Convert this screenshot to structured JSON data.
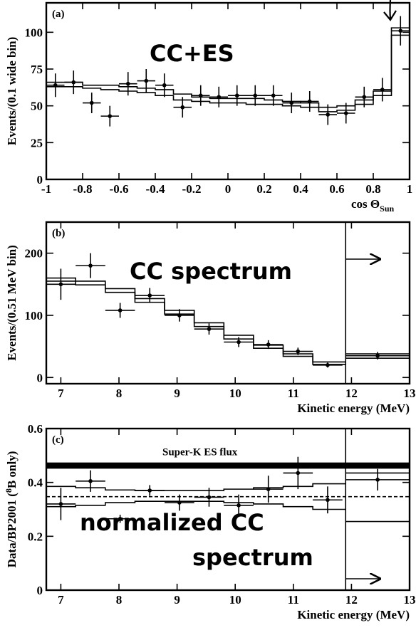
{
  "chart_data": [
    {
      "id": "a",
      "type": "line",
      "panel_label": "(a)",
      "annotation": "CC+ES",
      "xlabel": "cos Θ",
      "xlabel_sub": "Sun",
      "ylabel": "Events/(0.1 wide bin)",
      "xlim": [
        -1,
        1
      ],
      "ylim": [
        0,
        120
      ],
      "xticks": [
        -1,
        -0.8,
        -0.6,
        -0.4,
        -0.2,
        0,
        0.2,
        0.4,
        0.6,
        0.8,
        1
      ],
      "xtick_labels": [
        "-1",
        "-0.8",
        "-0.6",
        "-0.4",
        "-0.2",
        "0",
        "0.2",
        "0.4",
        "0.6",
        "0.8",
        "1"
      ],
      "yticks": [
        0,
        25,
        50,
        75,
        100
      ],
      "ytick_labels": [
        "0",
        "25",
        "50",
        "75",
        "100"
      ],
      "data_points": {
        "x": [
          -0.95,
          -0.85,
          -0.75,
          -0.65,
          -0.55,
          -0.45,
          -0.35,
          -0.25,
          -0.15,
          -0.05,
          0.05,
          0.15,
          0.25,
          0.35,
          0.45,
          0.55,
          0.65,
          0.75,
          0.85,
          0.95
        ],
        "y": [
          64,
          66,
          52,
          43,
          65,
          67,
          64,
          49,
          57,
          56,
          57,
          57,
          57,
          52,
          53,
          44,
          45,
          56,
          61,
          101
        ],
        "yerr": [
          8,
          8,
          7,
          7,
          8,
          8,
          8,
          7,
          7,
          7,
          7,
          7,
          7,
          7,
          7,
          7,
          7,
          7,
          8,
          10
        ]
      },
      "step_upper": {
        "edges": [
          -1,
          -0.9,
          -0.8,
          -0.7,
          -0.6,
          -0.5,
          -0.4,
          -0.3,
          -0.2,
          -0.1,
          0,
          0.1,
          0.2,
          0.3,
          0.4,
          0.5,
          0.6,
          0.7,
          0.8,
          0.9,
          1
        ],
        "values": [
          66,
          66,
          64,
          64,
          63,
          62,
          61,
          58,
          56,
          55,
          55,
          55,
          54,
          53,
          52,
          49,
          50,
          54,
          60,
          103
        ]
      },
      "step_lower": {
        "edges": [
          -1,
          -0.9,
          -0.8,
          -0.7,
          -0.6,
          -0.5,
          -0.4,
          -0.3,
          -0.2,
          -0.1,
          0,
          0.1,
          0.2,
          0.3,
          0.4,
          0.5,
          0.6,
          0.7,
          0.8,
          0.9,
          1
        ],
        "values": [
          63,
          63,
          62,
          61,
          60,
          59,
          57,
          54,
          53,
          52,
          52,
          51,
          51,
          50,
          49,
          46,
          47,
          51,
          57,
          98
        ]
      }
    },
    {
      "id": "b",
      "type": "line",
      "panel_label": "(b)",
      "annotation": "CC spectrum",
      "xlabel": "Kinetic energy (MeV)",
      "ylabel": "Events/(0.51 MeV bin)",
      "xlim": [
        6.75,
        13
      ],
      "ylim": [
        -10,
        250
      ],
      "xticks": [
        7,
        8,
        9,
        10,
        11,
        12,
        13
      ],
      "xtick_labels": [
        "7",
        "8",
        "9",
        "10",
        "11",
        "12",
        "13"
      ],
      "yticks": [
        0,
        100,
        200
      ],
      "ytick_labels": [
        "0",
        "100",
        "200"
      ],
      "data_points": {
        "x": [
          7.0,
          7.51,
          8.02,
          8.53,
          9.04,
          9.55,
          10.06,
          10.57,
          11.08,
          11.59,
          12.45
        ],
        "xerr": [
          0.255,
          0.255,
          0.255,
          0.255,
          0.255,
          0.255,
          0.255,
          0.255,
          0.255,
          0.255,
          0.55
        ],
        "y": [
          150,
          180,
          108,
          132,
          100,
          78,
          57,
          53,
          42,
          20,
          35
        ],
        "yerr": [
          25,
          20,
          12,
          12,
          10,
          9,
          8,
          7,
          6,
          4,
          6
        ]
      },
      "step_upper": {
        "edges": [
          6.745,
          7.255,
          7.765,
          8.275,
          8.785,
          9.295,
          9.805,
          10.315,
          10.825,
          11.335,
          11.9
        ],
        "values": [
          160,
          155,
          143,
          127,
          108,
          88,
          68,
          52,
          38,
          25
        ]
      },
      "step_lower": {
        "edges": [
          6.745,
          7.255,
          7.765,
          8.275,
          8.785,
          9.295,
          9.805,
          10.315,
          10.825,
          11.335,
          11.9
        ],
        "values": [
          155,
          149,
          137,
          121,
          102,
          82,
          62,
          47,
          34,
          21
        ]
      },
      "overflow_bin": {
        "lines": [
          31,
          38
        ],
        "from": 11.9,
        "to": 13
      },
      "overflow_marker": 11.9
    },
    {
      "id": "c",
      "type": "line",
      "panel_label": "(c)",
      "annotation_line1": "normalized CC",
      "annotation_line2": "spectrum",
      "band_label": "Super-K ES flux",
      "xlabel": "Kinetic energy (MeV)",
      "ylabel": "Data/BP2001 (",
      "ylabel_sup": "8",
      "ylabel_tail": "B only)",
      "xlim": [
        6.75,
        13
      ],
      "ylim": [
        0,
        0.6
      ],
      "xticks": [
        7,
        8,
        9,
        10,
        11,
        12,
        13
      ],
      "xtick_labels": [
        "7",
        "8",
        "9",
        "10",
        "11",
        "12",
        "13"
      ],
      "yticks": [
        0,
        0.2,
        0.4,
        0.6
      ],
      "ytick_labels": [
        "0",
        "0.2",
        "0.4",
        "0.6"
      ],
      "superk_band": [
        0.451,
        0.474
      ],
      "mean_line": 0.347,
      "data_points": {
        "x": [
          7.0,
          7.51,
          8.02,
          8.53,
          9.04,
          9.55,
          10.06,
          10.57,
          11.08,
          11.59,
          12.45
        ],
        "xerr": [
          0.255,
          0.255,
          0.255,
          0.255,
          0.255,
          0.255,
          0.255,
          0.255,
          0.255,
          0.255,
          0.55
        ],
        "y": [
          0.32,
          0.405,
          0.265,
          0.37,
          0.325,
          0.345,
          0.315,
          0.375,
          0.435,
          0.335,
          0.41
        ],
        "yerr": [
          0.06,
          0.04,
          0.015,
          0.02,
          0.03,
          0.035,
          0.04,
          0.05,
          0.06,
          0.05,
          0.04
        ]
      },
      "band_upper": {
        "edges": [
          6.745,
          7.255,
          7.765,
          8.275,
          8.785,
          9.295,
          9.805,
          10.315,
          10.825,
          11.335,
          11.9
        ],
        "values": [
          0.385,
          0.38,
          0.372,
          0.37,
          0.37,
          0.37,
          0.375,
          0.38,
          0.385,
          0.395
        ]
      },
      "band_lower": {
        "edges": [
          6.745,
          7.255,
          7.765,
          8.275,
          8.785,
          9.295,
          9.805,
          10.315,
          10.825,
          11.335,
          11.9
        ],
        "values": [
          0.31,
          0.315,
          0.325,
          0.33,
          0.33,
          0.33,
          0.325,
          0.32,
          0.31,
          0.3
        ]
      },
      "overflow_band": {
        "lines": [
          0.255,
          0.435
        ],
        "from": 11.9,
        "to": 13
      },
      "overflow_marker": 11.9
    }
  ]
}
